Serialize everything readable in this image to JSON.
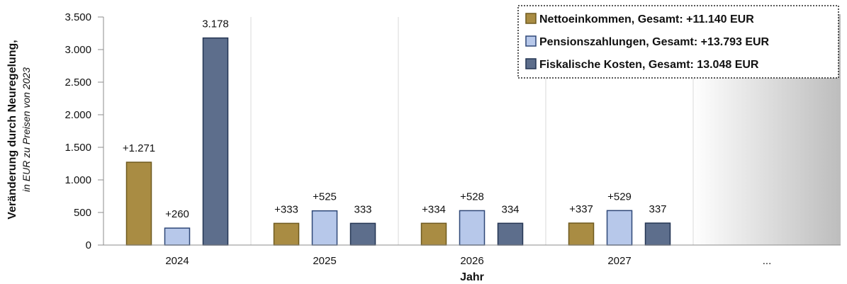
{
  "chart_data": {
    "type": "bar",
    "categories": [
      "2024",
      "2025",
      "2026",
      "2027",
      "..."
    ],
    "series": [
      {
        "name": "Nettoeinkommen, Gesamt: +11.140 EUR",
        "color": "#a98c43",
        "stroke": "#6f5a1f",
        "values": [
          1271,
          333,
          334,
          337,
          null
        ],
        "labels": [
          "+1.271",
          "+333",
          "+334",
          "+337",
          ""
        ]
      },
      {
        "name": "Pensionszahlungen, Gesamt: +13.793 EUR",
        "color": "#b7c8ea",
        "stroke": "#2e4777",
        "values": [
          260,
          525,
          528,
          529,
          null
        ],
        "labels": [
          "+260",
          "+525",
          "+528",
          "+529",
          ""
        ]
      },
      {
        "name": "Fiskalische Kosten, Gesamt: 13.048 EUR",
        "color": "#5d6e8c",
        "stroke": "#243553",
        "values": [
          3178,
          333,
          334,
          337,
          null
        ],
        "labels": [
          "3.178",
          "333",
          "334",
          "337",
          ""
        ]
      }
    ],
    "xlabel": "Jahr",
    "ylabel": "Veränderung durch Neuregelung,",
    "ylabel_sub": "in EUR zu Preisen von 2023",
    "ylim": [
      0,
      3500
    ],
    "yticks": [
      0,
      500,
      1000,
      1500,
      2000,
      2500,
      3000,
      3500
    ],
    "ytick_labels": [
      "0",
      "500",
      "1.000",
      "1.500",
      "2.000",
      "2.500",
      "3.000",
      "3.500"
    ],
    "grid": "vertical",
    "legend_position": "top-right"
  }
}
